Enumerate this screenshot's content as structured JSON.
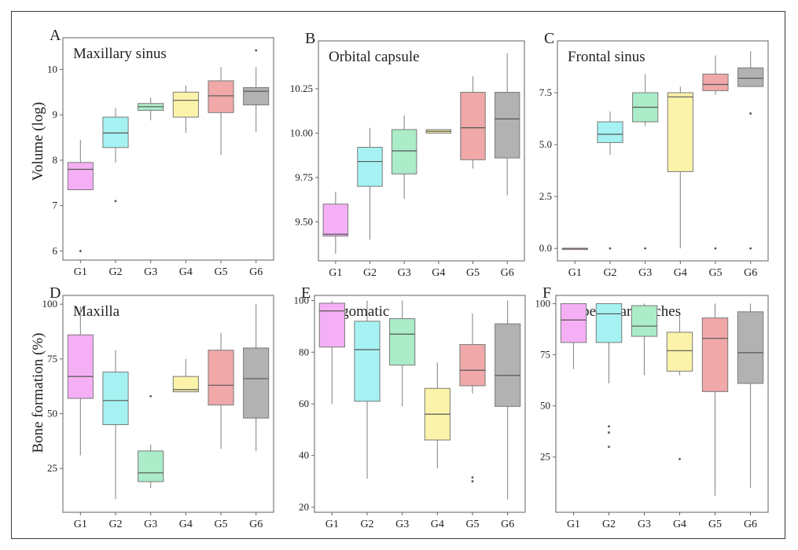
{
  "y_axis_labels": {
    "top_row": "Volume (log)",
    "bottom_row": "Bone formation (%)"
  },
  "colors": {
    "G1": "#f5b0f5",
    "G2": "#a6f2f2",
    "G3": "#aaedc8",
    "G4": "#fcf3ab",
    "G5": "#f0a8a8",
    "G6": "#b2b2b2"
  },
  "chart_data": [
    {
      "type": "box",
      "letter": "A",
      "title": "Maxillary sinus",
      "categories": [
        "G1",
        "G2",
        "G3",
        "G4",
        "G5",
        "G6"
      ],
      "ylim": [
        5.8,
        10.7
      ],
      "yticks": [
        6,
        7,
        8,
        9,
        10
      ],
      "ytick_labels": [
        "6",
        "7",
        "8",
        "9",
        "10"
      ],
      "boxes": [
        {
          "group": "G1",
          "low": 7.8,
          "q1": 7.35,
          "median": 7.8,
          "q3": 7.95,
          "high": 8.45,
          "outliers": [
            6.0
          ],
          "whisker_low": 7.35
        },
        {
          "group": "G2",
          "q1": 8.28,
          "median": 8.6,
          "q3": 8.95,
          "whisker_low": 7.95,
          "whisker_high": 9.15,
          "outliers": [
            7.1
          ]
        },
        {
          "group": "G3",
          "q1": 9.1,
          "median": 9.18,
          "q3": 9.25,
          "whisker_low": 8.88,
          "whisker_high": 9.38,
          "outliers": []
        },
        {
          "group": "G4",
          "q1": 8.95,
          "median": 9.32,
          "q3": 9.5,
          "whisker_low": 8.6,
          "whisker_high": 9.65,
          "outliers": []
        },
        {
          "group": "G5",
          "q1": 9.05,
          "median": 9.42,
          "q3": 9.75,
          "whisker_low": 8.12,
          "whisker_high": 10.05,
          "outliers": []
        },
        {
          "group": "G6",
          "q1": 9.22,
          "median": 9.52,
          "q3": 9.6,
          "whisker_low": 8.62,
          "whisker_high": 10.05,
          "outliers": [
            10.42
          ]
        }
      ]
    },
    {
      "type": "box",
      "letter": "B",
      "title": "Orbital capsule",
      "categories": [
        "G1",
        "G2",
        "G3",
        "G4",
        "G5",
        "G6"
      ],
      "ylim": [
        9.28,
        10.52
      ],
      "yticks": [
        9.5,
        9.75,
        10.0,
        10.25
      ],
      "ytick_labels": [
        "9.50",
        "9.75",
        "10.00",
        "10.25"
      ],
      "boxes": [
        {
          "group": "G1",
          "q1": 9.42,
          "median": 9.43,
          "q3": 9.6,
          "whisker_low": 9.32,
          "whisker_high": 9.67,
          "outliers": []
        },
        {
          "group": "G2",
          "q1": 9.7,
          "median": 9.84,
          "q3": 9.92,
          "whisker_low": 9.4,
          "whisker_high": 10.03,
          "outliers": []
        },
        {
          "group": "G3",
          "q1": 9.77,
          "median": 9.9,
          "q3": 10.02,
          "whisker_low": 9.63,
          "whisker_high": 10.1,
          "outliers": []
        },
        {
          "group": "G4",
          "q1": 10.0,
          "median": 10.01,
          "q3": 10.02,
          "whisker_low": 10.0,
          "whisker_high": 10.02,
          "outliers": []
        },
        {
          "group": "G5",
          "q1": 9.85,
          "median": 10.03,
          "q3": 10.23,
          "whisker_low": 9.8,
          "whisker_high": 10.32,
          "outliers": []
        },
        {
          "group": "G6",
          "q1": 9.86,
          "median": 10.08,
          "q3": 10.23,
          "whisker_low": 9.65,
          "whisker_high": 10.45,
          "outliers": []
        }
      ]
    },
    {
      "type": "box",
      "letter": "C",
      "title": "Frontal sinus",
      "categories": [
        "G1",
        "G2",
        "G3",
        "G4",
        "G5",
        "G6"
      ],
      "ylim": [
        -0.6,
        10.0
      ],
      "yticks": [
        0,
        2.5,
        5.0,
        7.5
      ],
      "ytick_labels": [
        "0.0",
        "2.5",
        "5.0",
        "7.5"
      ],
      "boxes": [
        {
          "group": "G1",
          "q1": 0.0,
          "median": 0.0,
          "q3": 0.0,
          "whisker_low": 0.0,
          "whisker_high": 0.0,
          "outliers": []
        },
        {
          "group": "G2",
          "q1": 5.1,
          "median": 5.5,
          "q3": 6.1,
          "whisker_low": 4.5,
          "whisker_high": 6.6,
          "outliers": [
            0.0
          ]
        },
        {
          "group": "G3",
          "q1": 6.1,
          "median": 6.8,
          "q3": 7.5,
          "whisker_low": 5.9,
          "whisker_high": 8.4,
          "outliers": [
            0.0
          ]
        },
        {
          "group": "G4",
          "q1": 3.7,
          "median": 7.3,
          "q3": 7.5,
          "whisker_low": 0.0,
          "whisker_high": 7.8,
          "outliers": []
        },
        {
          "group": "G5",
          "q1": 7.6,
          "median": 7.9,
          "q3": 8.4,
          "whisker_low": 7.4,
          "whisker_high": 9.3,
          "outliers": [
            0.0
          ]
        },
        {
          "group": "G6",
          "q1": 7.8,
          "median": 8.2,
          "q3": 8.7,
          "whisker_low": 7.8,
          "whisker_high": 9.5,
          "outliers": [
            6.5,
            0.0
          ]
        }
      ]
    },
    {
      "type": "box",
      "letter": "D",
      "title": "Maxilla",
      "categories": [
        "G1",
        "G2",
        "G3",
        "G4",
        "G5",
        "G6"
      ],
      "ylim": [
        5,
        104
      ],
      "yticks": [
        25,
        50,
        75,
        100
      ],
      "ytick_labels": [
        "25",
        "50",
        "75",
        "100"
      ],
      "boxes": [
        {
          "group": "G1",
          "q1": 57,
          "median": 67,
          "q3": 86,
          "whisker_low": 31,
          "whisker_high": 99,
          "outliers": []
        },
        {
          "group": "G2",
          "q1": 45,
          "median": 56,
          "q3": 69,
          "whisker_low": 11,
          "whisker_high": 79,
          "outliers": []
        },
        {
          "group": "G3",
          "q1": 19,
          "median": 23,
          "q3": 33,
          "whisker_low": 16,
          "whisker_high": 36,
          "outliers": [
            58
          ]
        },
        {
          "group": "G4",
          "q1": 60,
          "median": 61,
          "q3": 67,
          "whisker_low": 60,
          "whisker_high": 75,
          "outliers": []
        },
        {
          "group": "G5",
          "q1": 54,
          "median": 63,
          "q3": 79,
          "whisker_low": 34,
          "whisker_high": 87,
          "outliers": []
        },
        {
          "group": "G6",
          "q1": 48,
          "median": 66,
          "q3": 80,
          "whisker_low": 33,
          "whisker_high": 100,
          "outliers": []
        }
      ]
    },
    {
      "type": "box",
      "letter": "E",
      "title": "Zygomatic",
      "categories": [
        "G1",
        "G2",
        "G3",
        "G4",
        "G5",
        "G6"
      ],
      "ylim": [
        18,
        102
      ],
      "yticks": [
        20,
        40,
        60,
        80,
        100
      ],
      "ytick_labels": [
        "20",
        "40",
        "60",
        "80",
        "100"
      ],
      "boxes": [
        {
          "group": "G1",
          "q1": 82,
          "median": 96,
          "q3": 99,
          "whisker_low": 60,
          "whisker_high": 100,
          "outliers": []
        },
        {
          "group": "G2",
          "q1": 61,
          "median": 81,
          "q3": 92,
          "whisker_low": 31,
          "whisker_high": 100,
          "outliers": []
        },
        {
          "group": "G3",
          "q1": 75,
          "median": 87,
          "q3": 93,
          "whisker_low": 59,
          "whisker_high": 100,
          "outliers": []
        },
        {
          "group": "G4",
          "q1": 46,
          "median": 56,
          "q3": 66,
          "whisker_low": 35,
          "whisker_high": 76,
          "outliers": []
        },
        {
          "group": "G5",
          "q1": 67,
          "median": 73,
          "q3": 83,
          "whisker_low": 64,
          "whisker_high": 95,
          "outliers": [
            31.5,
            30
          ]
        },
        {
          "group": "G6",
          "q1": 59,
          "median": 71,
          "q3": 91,
          "whisker_low": 23,
          "whisker_high": 100,
          "outliers": []
        }
      ]
    },
    {
      "type": "box",
      "letter": "F",
      "title": "Superciliary arches",
      "categories": [
        "G1",
        "G2",
        "G3",
        "G4",
        "G5",
        "G6"
      ],
      "ylim": [
        -2,
        104
      ],
      "yticks": [
        25,
        50,
        75,
        100
      ],
      "ytick_labels": [
        "25",
        "50",
        "75",
        "100"
      ],
      "boxes": [
        {
          "group": "G1",
          "q1": 81,
          "median": 92,
          "q3": 100,
          "whisker_low": 68,
          "whisker_high": 100,
          "outliers": []
        },
        {
          "group": "G2",
          "q1": 81,
          "median": 95,
          "q3": 100,
          "whisker_low": 61,
          "whisker_high": 100,
          "outliers": [
            40,
            37,
            30
          ]
        },
        {
          "group": "G3",
          "q1": 84,
          "median": 89,
          "q3": 99,
          "whisker_low": 65,
          "whisker_high": 100,
          "outliers": []
        },
        {
          "group": "G4",
          "q1": 67,
          "median": 77,
          "q3": 86,
          "whisker_low": 65,
          "whisker_high": 94,
          "outliers": [
            24
          ]
        },
        {
          "group": "G5",
          "q1": 57,
          "median": 83,
          "q3": 93,
          "whisker_low": 6,
          "whisker_high": 100,
          "outliers": []
        },
        {
          "group": "G6",
          "q1": 61,
          "median": 76,
          "q3": 96,
          "whisker_low": 10,
          "whisker_high": 100,
          "outliers": []
        }
      ]
    }
  ]
}
